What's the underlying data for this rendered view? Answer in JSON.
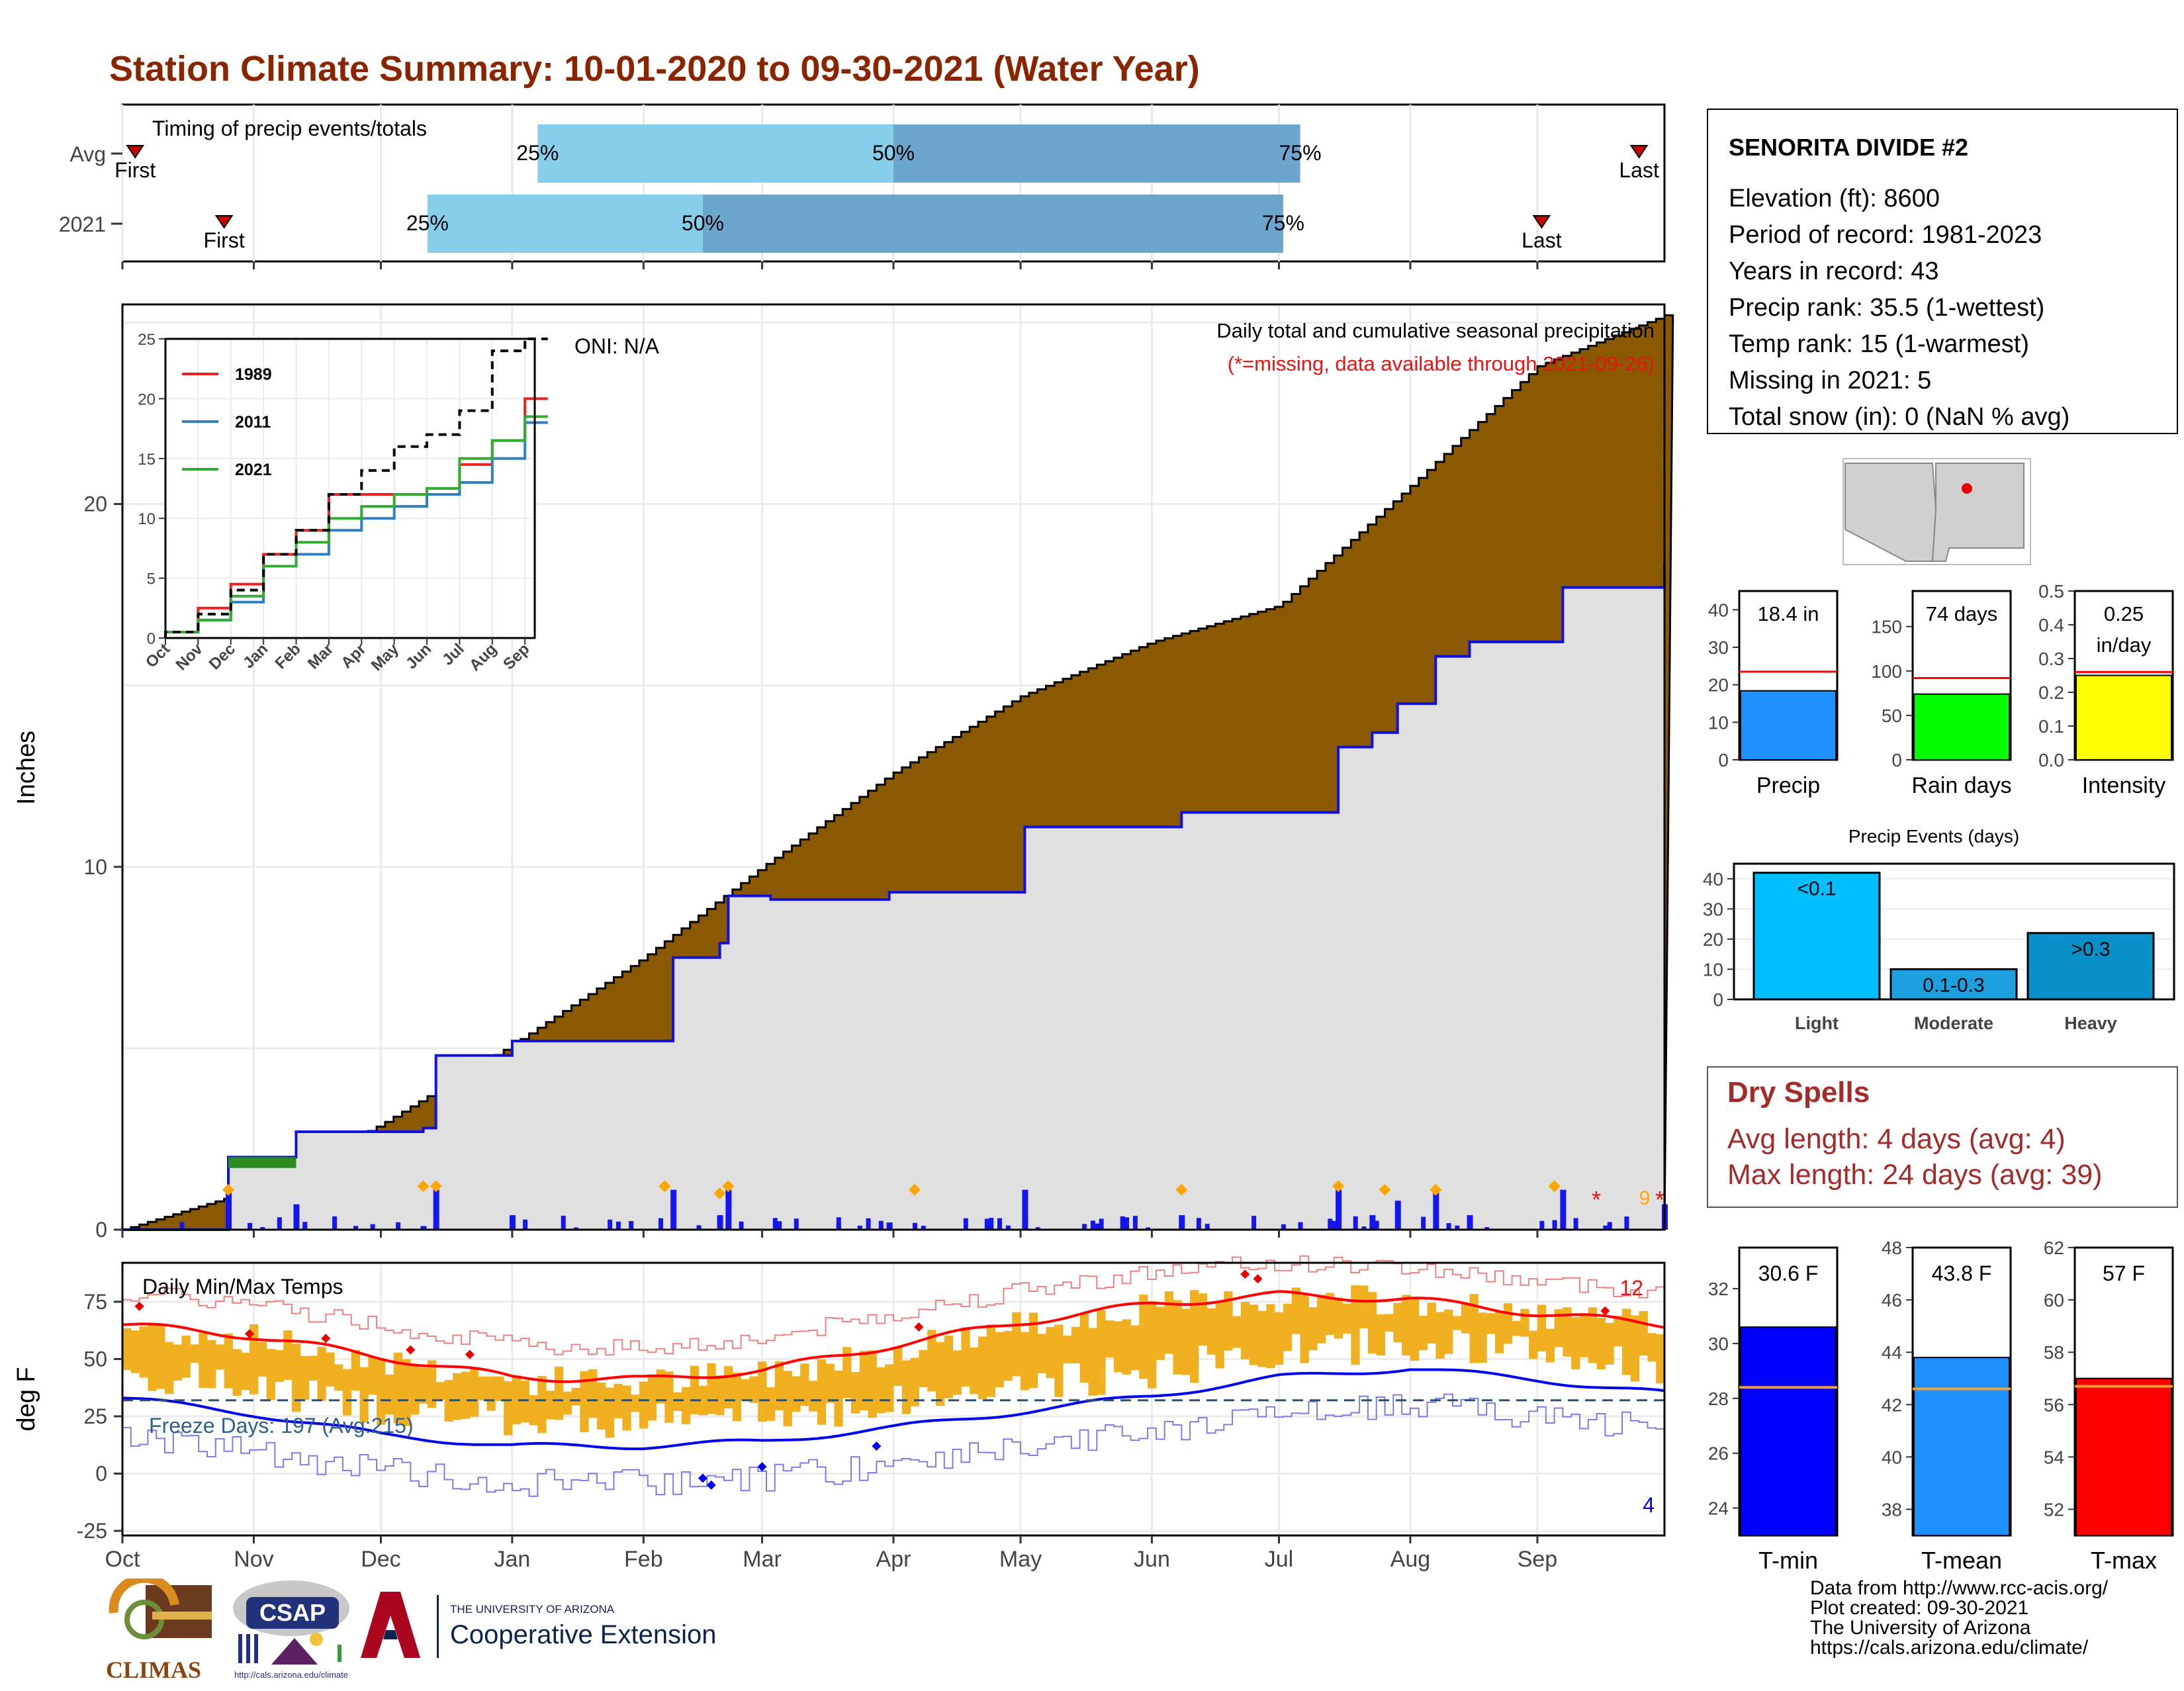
{
  "title": "Station Climate Summary: 10-01-2020 to 09-30-2021 (Water Year)",
  "colors": {
    "title": "#8B2500",
    "precip_fill": "#8B5A00",
    "current_fill": "#E0E0E0",
    "current_line": "#1010E0",
    "bar_light": "#87CEEB",
    "bar_mid": "#6CA6CD",
    "tmin": "#0000FF",
    "tmean": "#1E90FF",
    "tmax": "#FF0000",
    "temp_bars": "#F0B020",
    "dry_spells": "#A52A2A"
  },
  "months": [
    "Oct",
    "Nov",
    "Dec",
    "Jan",
    "Feb",
    "Mar",
    "Apr",
    "May",
    "Jun",
    "Jul",
    "Aug",
    "Sep"
  ],
  "timing": {
    "label": "Timing of precip events/totals",
    "rows": [
      {
        "name": "Avg",
        "first_day": 3,
        "q25": 98,
        "q50": 182,
        "q75": 278,
        "last_day": 358,
        "first_label": "First",
        "last_label": "Last",
        "p25": "25%",
        "p50": "50%",
        "p75": "75%"
      },
      {
        "name": "2021",
        "first_day": 24,
        "q25": 72,
        "q50": 137,
        "q75": 274,
        "last_day": 335,
        "first_label": "First",
        "last_label": "Last",
        "p25": "25%",
        "p50": "50%",
        "p75": "75%"
      }
    ]
  },
  "station": {
    "name": "SENORITA DIVIDE #2",
    "lines": [
      "Elevation (ft): 8600",
      "Period of record: 1981-2023",
      "Years in record: 43",
      "Precip rank: 35.5 (1-wettest)",
      "Temp rank: 15 (1-warmest)",
      "Missing in 2021: 5",
      "Total snow (in): 0 (NaN % avg)"
    ]
  },
  "summary_bars": [
    {
      "label": "Precip",
      "value_label": "18.4 in",
      "value": 18.4,
      "avg": 23.5,
      "ymax": 45,
      "ticks": [
        0,
        10,
        20,
        30,
        40
      ],
      "color": "#1E90FF"
    },
    {
      "label": "Rain days",
      "value_label": "74 days",
      "value": 74,
      "avg": 92,
      "ymax": 190,
      "ticks": [
        0,
        50,
        100,
        150
      ],
      "color": "#00FF00"
    },
    {
      "label": "Intensity",
      "value_label": "0.25 in/day",
      "value": 0.25,
      "avg": 0.26,
      "ymax": 0.5,
      "ticks": [
        0.0,
        0.1,
        0.2,
        0.3,
        0.4,
        0.5
      ],
      "color": "#FFFF00"
    }
  ],
  "precip_events": {
    "title": "Precip Events (days)",
    "categories": [
      "Light",
      "Moderate",
      "Heavy"
    ],
    "bar_labels": [
      "<0.1",
      "0.1-0.3",
      ">0.3"
    ],
    "values": [
      42,
      10,
      22
    ],
    "ticks": [
      0,
      10,
      20,
      30,
      40
    ],
    "colors": [
      "#00BFFF",
      "#1EA0E0",
      "#0A90C8"
    ]
  },
  "dry_spells": {
    "title": "Dry Spells",
    "lines": [
      "Avg length: 4 days (avg: 4)",
      "Max length: 24 days (avg: 39)"
    ]
  },
  "temp_summary": [
    {
      "label": "T-min",
      "value_label": "30.6 F",
      "value": 30.6,
      "avg": 28.4,
      "ymin": 23,
      "ymax": 33.5,
      "ticks": [
        24,
        26,
        28,
        30,
        32
      ],
      "color": "#0000FF"
    },
    {
      "label": "T-mean",
      "value_label": "43.8 F",
      "value": 43.8,
      "avg": 42.6,
      "ymin": 37,
      "ymax": 48,
      "ticks": [
        38,
        40,
        42,
        44,
        46,
        48
      ],
      "color": "#1E90FF"
    },
    {
      "label": "T-max",
      "value_label": "57 F",
      "value": 57,
      "avg": 56.7,
      "ymin": 51,
      "ymax": 62,
      "ticks": [
        52,
        54,
        56,
        58,
        60,
        62
      ],
      "color": "#FF0000"
    }
  ],
  "precip_panel": {
    "ylabel": "Inches",
    "yticks": [
      0,
      10,
      20
    ],
    "ymax": 25.5,
    "oni": "ONI: N/A",
    "caption1": "Daily total and cumulative seasonal precipitation",
    "caption2": "(*=missing, data available through 2021-09-26)",
    "missing_marker": "*",
    "missing_count": "9"
  },
  "inset": {
    "xlabels": [
      "Oct",
      "Nov",
      "Dec",
      "Jan",
      "Feb",
      "Mar",
      "Apr",
      "May",
      "Jun",
      "Jul",
      "Aug",
      "Sep"
    ],
    "yticks": [
      0,
      5,
      10,
      15,
      20,
      25
    ],
    "legend": [
      {
        "name": "1989",
        "color": "#EE2020"
      },
      {
        "name": "2011",
        "color": "#2F7FC1"
      },
      {
        "name": "2021",
        "color": "#33AA33"
      }
    ]
  },
  "temp_panel": {
    "ylabel": "deg F",
    "title": "Daily Min/Max Temps",
    "yticks": [
      -25,
      0,
      25,
      50,
      75
    ],
    "freeze": "Freeze Days: 197 (Avg:215)",
    "count_hot": "12",
    "count_cold": "4"
  },
  "credits": [
    "Data from http://www.rcc-acis.org/",
    "Plot created: 09-30-2021",
    "The University of Arizona",
    "https://cals.arizona.edu/climate/"
  ],
  "logos": {
    "climas": "CLIMAS",
    "csap": "CSAP",
    "csap_url": "http://cals.arizona.edu/climate",
    "ua_small": "THE UNIVERSITY OF ARIZONA",
    "ua_big": "Cooperative Extension"
  },
  "chart_data": [
    {
      "type": "area",
      "title": "Daily total and cumulative seasonal precipitation",
      "ylabel": "Inches",
      "ylim": [
        0,
        25.5
      ],
      "x_unit": "day of water year (Oct 1 = 0)",
      "series": [
        {
          "name": "Average cumulative",
          "x": [
            0,
            31,
            61,
            92,
            123,
            151,
            182,
            212,
            243,
            273,
            304,
            334,
            364
          ],
          "values": [
            0,
            1.1,
            2.9,
            5.1,
            7.5,
            10.0,
            12.6,
            14.7,
            16.2,
            17.2,
            20.5,
            23.8,
            25.2
          ]
        },
        {
          "name": "2021 cumulative",
          "x": [
            0,
            24,
            25,
            41,
            71,
            74,
            92,
            130,
            141,
            143,
            153,
            181,
            213,
            250,
            287,
            295,
            301,
            310,
            318,
            340,
            364
          ],
          "values": [
            0,
            0,
            2.0,
            2.7,
            2.8,
            4.8,
            5.2,
            7.5,
            7.9,
            9.2,
            9.1,
            9.3,
            11.1,
            11.5,
            13.3,
            13.7,
            14.5,
            15.8,
            16.2,
            17.7,
            18.4
          ]
        }
      ]
    },
    {
      "type": "line",
      "title": "",
      "ylim": [
        0,
        25
      ],
      "categories": [
        "Oct",
        "Nov",
        "Dec",
        "Jan",
        "Feb",
        "Mar",
        "Apr",
        "May",
        "Jun",
        "Jul",
        "Aug",
        "Sep"
      ],
      "series": [
        {
          "name": "1989",
          "values": [
            0.5,
            2.5,
            4.5,
            7,
            9,
            12,
            12,
            12,
            12,
            14.5,
            16.5,
            20
          ]
        },
        {
          "name": "2011",
          "values": [
            0.5,
            1.5,
            3,
            6,
            7,
            9,
            10,
            11,
            12,
            13,
            15,
            18
          ]
        },
        {
          "name": "2021",
          "values": [
            0.5,
            1.5,
            3.5,
            6,
            8,
            10,
            11,
            12,
            12.5,
            15,
            16.5,
            18.5
          ]
        },
        {
          "name": "Average",
          "values": [
            0.5,
            2,
            4,
            7,
            9,
            12,
            14,
            16,
            17,
            19,
            24,
            25
          ]
        }
      ]
    },
    {
      "type": "bar",
      "title": "Precip Events (days)",
      "categories": [
        "Light",
        "Moderate",
        "Heavy"
      ],
      "values": [
        42,
        10,
        22
      ]
    },
    {
      "type": "line",
      "title": "Daily Min/Max Temps",
      "ylabel": "deg F",
      "ylim": [
        -27,
        92
      ],
      "x_unit": "day of water year",
      "series": [
        {
          "name": "Avg max",
          "x": [
            0,
            31,
            61,
            92,
            123,
            151,
            182,
            212,
            243,
            273,
            304,
            334,
            364
          ],
          "values": [
            65,
            60,
            51,
            42,
            41,
            45,
            56,
            66,
            74,
            78,
            76,
            70,
            65
          ]
        },
        {
          "name": "Avg min",
          "x": [
            0,
            31,
            61,
            92,
            123,
            151,
            182,
            212,
            243,
            273,
            304,
            334,
            364
          ],
          "values": [
            33,
            26,
            17,
            12,
            12,
            14,
            20,
            27,
            34,
            42,
            46,
            41,
            35
          ]
        },
        {
          "name": "Freeze line",
          "x": [
            0,
            364
          ],
          "values": [
            32,
            32
          ]
        }
      ]
    },
    {
      "type": "bar",
      "title": "",
      "categories": [
        "T-min",
        "T-mean",
        "T-max"
      ],
      "values": [
        30.6,
        43.8,
        57
      ]
    }
  ]
}
